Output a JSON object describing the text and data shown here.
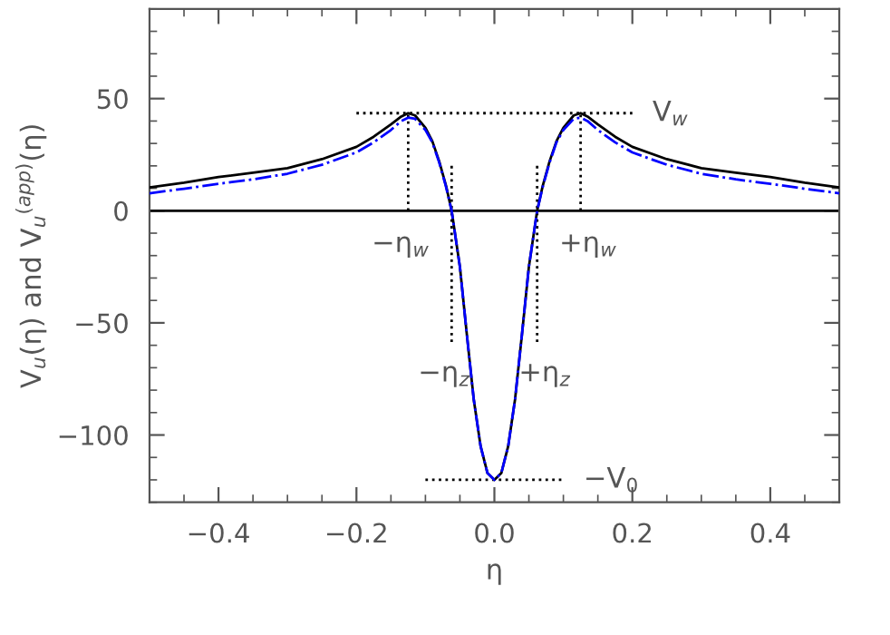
{
  "chart_data": {
    "type": "line",
    "xlabel": "η",
    "ylabel": "V$_{u}$(η) and V$_{u}$$^{(app)}$(η)",
    "xlim": [
      -0.5,
      0.5
    ],
    "xticks": [
      {
        "value": -0.4,
        "label": "−0.4"
      },
      {
        "value": -0.2,
        "label": "−0.2"
      },
      {
        "value": 0,
        "label": "0.0"
      },
      {
        "value": 0.2,
        "label": "0.2"
      },
      {
        "value": 0.4,
        "label": "0.4"
      }
    ],
    "ylim": [
      -130,
      90
    ],
    "yticks": [
      {
        "value": -100,
        "label": "−100"
      },
      {
        "value": -50,
        "label": "−50"
      },
      0,
      50
    ],
    "grid": false,
    "legend": false,
    "marker": "none",
    "ref_lines": [
      {
        "axis": "y",
        "value": 0,
        "color": "#000000",
        "line_style": "solid"
      }
    ],
    "series": [
      {
        "color": "#000000",
        "line_style": "solid",
        "x": [
          -0.5,
          -0.45,
          -0.4,
          -0.35,
          -0.3,
          -0.25,
          -0.2,
          -0.175,
          -0.15,
          -0.135,
          -0.125,
          -0.115,
          -0.1,
          -0.09,
          -0.08,
          -0.07,
          -0.062,
          -0.05,
          -0.04,
          -0.03,
          -0.02,
          -0.01,
          0,
          0.01,
          0.02,
          0.03,
          0.04,
          0.05,
          0.062,
          0.07,
          0.08,
          0.09,
          0.1,
          0.115,
          0.125,
          0.135,
          0.15,
          0.175,
          0.2,
          0.25,
          0.3,
          0.35,
          0.4,
          0.45,
          0.5
        ],
        "values": [
          10.4,
          12.5,
          15,
          17,
          19,
          23,
          28.5,
          33,
          38.5,
          42,
          43.5,
          42.5,
          37,
          31,
          22,
          11,
          0,
          -25,
          -55,
          -84,
          -105,
          -117,
          -120,
          -117,
          -105,
          -84,
          -55,
          -25,
          0,
          11,
          22,
          31,
          37,
          42.5,
          43.5,
          42,
          38.5,
          33,
          28.5,
          23,
          19,
          17,
          15,
          12.5,
          10.4
        ]
      },
      {
        "color": "#0000ff",
        "line_style": "dashdot",
        "x": [
          -0.5,
          -0.45,
          -0.4,
          -0.35,
          -0.3,
          -0.25,
          -0.2,
          -0.175,
          -0.15,
          -0.135,
          -0.125,
          -0.115,
          -0.1,
          -0.09,
          -0.08,
          -0.07,
          -0.062,
          -0.05,
          -0.04,
          -0.03,
          -0.02,
          -0.01,
          0,
          0.01,
          0.02,
          0.03,
          0.04,
          0.05,
          0.062,
          0.07,
          0.08,
          0.09,
          0.1,
          0.115,
          0.125,
          0.135,
          0.15,
          0.175,
          0.2,
          0.25,
          0.3,
          0.35,
          0.4,
          0.45,
          0.5
        ],
        "values": [
          7.8,
          9.8,
          12,
          14,
          16.5,
          20.5,
          26,
          30.5,
          36,
          40,
          41.5,
          41,
          36,
          30.5,
          21.5,
          10.5,
          0,
          -25,
          -55,
          -84,
          -105,
          -117,
          -120,
          -117,
          -105,
          -84,
          -55,
          -25,
          0,
          10.5,
          21.5,
          30.5,
          36,
          41,
          41.5,
          40,
          36,
          30.5,
          26,
          20.5,
          16.5,
          14,
          12,
          9.8,
          7.8
        ]
      },
      {
        "color": "#000000",
        "line_style": "dotted",
        "x": [
          -0.2,
          0.2
        ],
        "values": [
          43.5,
          43.5
        ]
      },
      {
        "color": "#000000",
        "line_style": "dotted",
        "x": [
          -0.125,
          -0.125
        ],
        "values": [
          0,
          43.5
        ]
      },
      {
        "color": "#000000",
        "line_style": "dotted",
        "x": [
          0.125,
          0.125
        ],
        "values": [
          0,
          43.5
        ]
      },
      {
        "color": "#000000",
        "line_style": "dotted",
        "x": [
          -0.062,
          -0.062
        ],
        "values": [
          20,
          -60
        ]
      },
      {
        "color": "#000000",
        "line_style": "dotted",
        "x": [
          0.062,
          0.062
        ],
        "values": [
          20,
          -60
        ]
      },
      {
        "color": "#000000",
        "line_style": "dotted",
        "x": [
          -0.1,
          0.1
        ],
        "values": [
          -120,
          -120
        ]
      }
    ],
    "annotations": [
      {
        "text": "V$_{w}$",
        "x": 0.2,
        "y": 43.5
      },
      {
        "text": "−η$_{w}$",
        "x": -0.125,
        "y": 0
      },
      {
        "text": "+η$_{w}$",
        "x": 0.125,
        "y": 0
      },
      {
        "text": "−η$_{z}$",
        "x": -0.062,
        "y": -60
      },
      {
        "text": "+η$_{z}$",
        "x": 0.062,
        "y": -60
      },
      {
        "text": "−V$_{0}$",
        "x": 0.1,
        "y": -120
      }
    ]
  }
}
